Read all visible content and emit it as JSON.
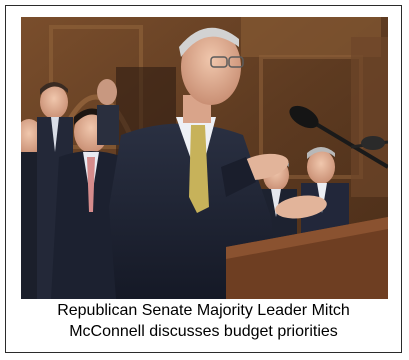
{
  "figure": {
    "caption_line_1": "Republican Senate Majority Leader Mitch",
    "caption_line_2": "McConnell discusses budget priorities"
  },
  "colors": {
    "border": "#2b2b2b",
    "wood_paneling": "#6b4426",
    "suit_dark": "#1f2433"
  }
}
